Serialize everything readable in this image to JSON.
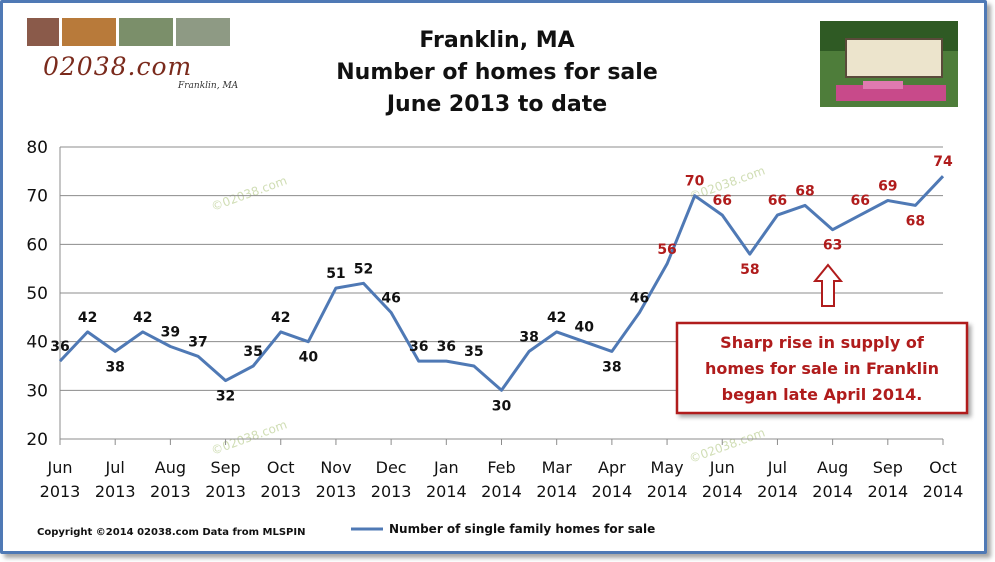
{
  "header": {
    "logo_text": "02038.com",
    "logo_subtext": "Franklin, MA",
    "title_lines": [
      "Franklin, MA",
      "Number of homes for sale",
      "June 2013 to date"
    ]
  },
  "chart_data": {
    "type": "line",
    "title": "Franklin, MA Number of homes for sale June 2013 to date",
    "xlabel": "",
    "ylabel": "",
    "ylim": [
      20,
      80
    ],
    "yticks": [
      20,
      30,
      40,
      50,
      60,
      70,
      80
    ],
    "grid": true,
    "x_ticks": [
      {
        "month": "Jun",
        "year": "2013"
      },
      {
        "month": "Jul",
        "year": "2013"
      },
      {
        "month": "Aug",
        "year": "2013"
      },
      {
        "month": "Sep",
        "year": "2013"
      },
      {
        "month": "Oct",
        "year": "2013"
      },
      {
        "month": "Nov",
        "year": "2013"
      },
      {
        "month": "Dec",
        "year": "2013"
      },
      {
        "month": "Jan",
        "year": "2014"
      },
      {
        "month": "Feb",
        "year": "2014"
      },
      {
        "month": "Mar",
        "year": "2014"
      },
      {
        "month": "Apr",
        "year": "2014"
      },
      {
        "month": "May",
        "year": "2014"
      },
      {
        "month": "Jun",
        "year": "2014"
      },
      {
        "month": "Jul",
        "year": "2014"
      },
      {
        "month": "Aug",
        "year": "2014"
      },
      {
        "month": "Sep",
        "year": "2014"
      },
      {
        "month": "Oct",
        "year": "2014"
      }
    ],
    "series": [
      {
        "name": "Number of single family homes for sale",
        "color": "#4f79b5",
        "values": [
          36,
          42,
          38,
          42,
          39,
          37,
          32,
          35,
          42,
          40,
          51,
          52,
          46,
          36,
          36,
          35,
          30,
          38,
          42,
          40,
          38,
          46,
          56,
          70,
          66,
          58,
          66,
          68,
          63,
          66,
          69,
          68,
          74
        ]
      }
    ],
    "label_color_before": "#111111",
    "label_color_after": "#b01c1c",
    "annotation": {
      "lines": [
        "Sharp rise in supply of",
        "homes for sale in Franklin",
        "began late April 2014."
      ],
      "color": "#b01c1c"
    },
    "legend": {
      "position": "bottom",
      "label": "Number of single family homes for sale"
    }
  },
  "watermarks": [
    "©02038.com",
    "©02038.com",
    "©02038.com",
    "©02038.com"
  ],
  "footer": {
    "credit": "Copyright ©2014 02038.com Data from MLSPIN"
  }
}
